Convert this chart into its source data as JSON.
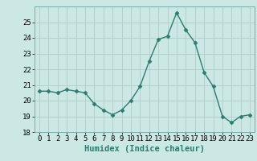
{
  "x": [
    0,
    1,
    2,
    3,
    4,
    5,
    6,
    7,
    8,
    9,
    10,
    11,
    12,
    13,
    14,
    15,
    16,
    17,
    18,
    19,
    20,
    21,
    22,
    23
  ],
  "y": [
    20.6,
    20.6,
    20.5,
    20.7,
    20.6,
    20.5,
    19.8,
    19.4,
    19.1,
    19.4,
    20.0,
    20.9,
    22.5,
    23.9,
    24.1,
    25.6,
    24.5,
    23.7,
    21.8,
    20.9,
    19.0,
    18.6,
    19.0,
    19.1
  ],
  "line_color": "#2d7d6e",
  "marker": "D",
  "marker_size": 2.5,
  "bg_color": "#cce8e4",
  "grid_color": "#b0cccc",
  "xlabel": "Humidex (Indice chaleur)",
  "ylim": [
    18,
    26
  ],
  "xlim": [
    -0.5,
    23.5
  ],
  "yticks": [
    18,
    19,
    20,
    21,
    22,
    23,
    24,
    25
  ],
  "xticks": [
    0,
    1,
    2,
    3,
    4,
    5,
    6,
    7,
    8,
    9,
    10,
    11,
    12,
    13,
    14,
    15,
    16,
    17,
    18,
    19,
    20,
    21,
    22,
    23
  ],
  "xlabel_fontsize": 7.5,
  "tick_fontsize": 6.5,
  "line_width": 1.0
}
